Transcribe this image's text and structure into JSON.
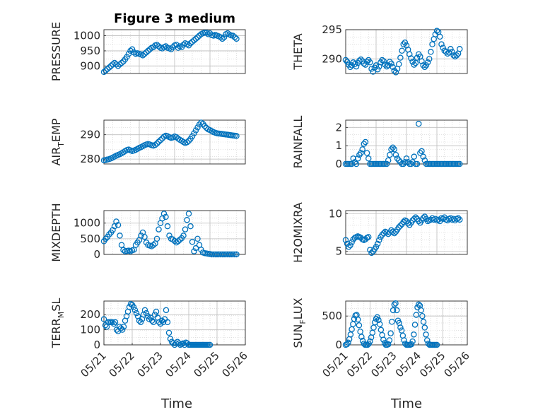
{
  "figure": {
    "title": "Figure 3 medium",
    "marker_color": "#0072bd"
  },
  "chart_data": [
    {
      "type": "scatter",
      "ylabel": "PRESSURE",
      "title": "Figure 3 medium",
      "xlabel": "",
      "xlim": [
        "05/21",
        "05/25"
      ],
      "ylim": [
        875,
        1020
      ],
      "yticks": [
        900,
        950,
        1000
      ],
      "xticklabels": [],
      "grid": true,
      "marker": "open-circle",
      "x": [
        0,
        0.05,
        0.1,
        0.15,
        0.2,
        0.25,
        0.3,
        0.35,
        0.4,
        0.45,
        0.5,
        0.55,
        0.6,
        0.65,
        0.7,
        0.75,
        0.8,
        0.85,
        0.9,
        0.95,
        1.0,
        1.05,
        1.1,
        1.15,
        1.2,
        1.25,
        1.3,
        1.35,
        1.4,
        1.45,
        1.5,
        1.55,
        1.6,
        1.65,
        1.7,
        1.75,
        1.8,
        1.85,
        1.9,
        1.95,
        2.0,
        2.05,
        2.1,
        2.15,
        2.2,
        2.25,
        2.3,
        2.35,
        2.4,
        2.45,
        2.5,
        2.55,
        2.6,
        2.65,
        2.7,
        2.75,
        2.8,
        2.85,
        2.9,
        2.95,
        3.0,
        3.05,
        3.1,
        3.15,
        3.2,
        3.25,
        3.3,
        3.35,
        3.4,
        3.45,
        3.5,
        3.55,
        3.6,
        3.65,
        3.7,
        3.75
      ],
      "y": [
        880,
        885,
        890,
        895,
        900,
        905,
        910,
        905,
        900,
        905,
        910,
        915,
        922,
        930,
        940,
        950,
        955,
        945,
        940,
        942,
        940,
        938,
        935,
        940,
        945,
        950,
        955,
        960,
        962,
        968,
        970,
        965,
        960,
        958,
        962,
        965,
        960,
        958,
        955,
        962,
        968,
        970,
        960,
        965,
        962,
        970,
        975,
        972,
        968,
        975,
        980,
        985,
        990,
        995,
        1000,
        1005,
        1008,
        1010,
        1010,
        1005,
        1008,
        1002,
        1000,
        1003,
        1000,
        998,
        995,
        990,
        995,
        1005,
        1008,
        1004,
        1001,
        1000,
        995,
        990
      ]
    },
    {
      "type": "scatter",
      "ylabel": "THETA",
      "xlabel": "",
      "xlim": [
        "05/21",
        "05/25"
      ],
      "ylim": [
        287.5,
        295
      ],
      "yticks": [
        290,
        295
      ],
      "xticklabels": [],
      "grid": true,
      "marker": "open-circle",
      "x": [
        0,
        0.05,
        0.1,
        0.15,
        0.2,
        0.25,
        0.3,
        0.35,
        0.4,
        0.45,
        0.5,
        0.55,
        0.6,
        0.65,
        0.7,
        0.75,
        0.8,
        0.85,
        0.9,
        0.95,
        1.0,
        1.05,
        1.1,
        1.15,
        1.2,
        1.25,
        1.3,
        1.35,
        1.4,
        1.45,
        1.5,
        1.55,
        1.6,
        1.65,
        1.7,
        1.75,
        1.8,
        1.85,
        1.9,
        1.95,
        2.0,
        2.05,
        2.1,
        2.15,
        2.2,
        2.25,
        2.3,
        2.35,
        2.4,
        2.45,
        2.5,
        2.55,
        2.6,
        2.65,
        2.7,
        2.75,
        2.8,
        2.85,
        2.9,
        2.95,
        3.0,
        3.05,
        3.1,
        3.15,
        3.2,
        3.25,
        3.3,
        3.35,
        3.4,
        3.45,
        3.5,
        3.55,
        3.6,
        3.65,
        3.7,
        3.75
      ],
      "y": [
        289.8,
        289.5,
        289.0,
        288.6,
        288.9,
        289.4,
        289.1,
        288.7,
        289.3,
        289.7,
        289.9,
        289.6,
        289.2,
        289.0,
        289.5,
        289.8,
        289.4,
        288.3,
        287.8,
        288.5,
        288.9,
        288.2,
        288.7,
        289.4,
        289.8,
        289.6,
        289.0,
        288.7,
        288.9,
        289.5,
        289.2,
        288.6,
        288.0,
        287.7,
        288.3,
        289.1,
        290.2,
        291.4,
        292.5,
        292.8,
        292.3,
        291.6,
        290.8,
        290.1,
        289.5,
        289.0,
        289.3,
        290.2,
        290.8,
        290.4,
        289.6,
        288.9,
        288.6,
        288.9,
        289.4,
        290.0,
        291.2,
        292.5,
        293.4,
        294.2,
        294.8,
        294.6,
        293.8,
        292.5,
        291.9,
        291.4,
        291.2,
        290.9,
        291.1,
        291.7,
        291.2,
        290.6,
        290.4,
        290.6,
        290.9,
        291.7
      ]
    },
    {
      "type": "scatter",
      "ylabel": "AIR_TEMP",
      "ylabel_main": "AIR",
      "ylabel_sub": "T",
      "ylabel_rest": "EMP",
      "xlabel": "",
      "xlim": [
        "05/21",
        "05/25"
      ],
      "ylim": [
        278,
        296
      ],
      "yticks": [
        280,
        290
      ],
      "xticklabels": [],
      "grid": true,
      "marker": "open-circle",
      "x": [
        0,
        0.05,
        0.1,
        0.15,
        0.2,
        0.25,
        0.3,
        0.35,
        0.4,
        0.45,
        0.5,
        0.55,
        0.6,
        0.65,
        0.7,
        0.75,
        0.8,
        0.85,
        0.9,
        0.95,
        1.0,
        1.05,
        1.1,
        1.15,
        1.2,
        1.25,
        1.3,
        1.35,
        1.4,
        1.45,
        1.5,
        1.55,
        1.6,
        1.65,
        1.7,
        1.75,
        1.8,
        1.85,
        1.9,
        1.95,
        2.0,
        2.05,
        2.1,
        2.15,
        2.2,
        2.25,
        2.3,
        2.35,
        2.4,
        2.45,
        2.5,
        2.55,
        2.6,
        2.65,
        2.7,
        2.75,
        2.8,
        2.85,
        2.9,
        2.95,
        3.0,
        3.05,
        3.1,
        3.15,
        3.2,
        3.25,
        3.3,
        3.35,
        3.4,
        3.45,
        3.5,
        3.55,
        3.6,
        3.65,
        3.7,
        3.75
      ],
      "y": [
        279.5,
        279.6,
        279.8,
        280.0,
        280.3,
        280.6,
        281.0,
        281.4,
        281.7,
        282.0,
        282.4,
        282.8,
        283.3,
        283.7,
        283.9,
        283.6,
        283.3,
        283.5,
        283.8,
        284.2,
        284.6,
        284.9,
        285.3,
        285.7,
        286.0,
        286.2,
        286.0,
        285.7,
        285.5,
        285.8,
        286.4,
        287.1,
        287.8,
        288.5,
        289.2,
        289.6,
        289.4,
        289.0,
        288.7,
        288.9,
        289.3,
        289.0,
        288.4,
        287.9,
        287.5,
        287.0,
        286.6,
        286.9,
        287.5,
        288.3,
        289.4,
        290.6,
        291.8,
        293.0,
        294.2,
        295.0,
        294.5,
        293.6,
        292.8,
        292.2,
        291.9,
        291.5,
        291.1,
        290.8,
        290.6,
        290.5,
        290.4,
        290.3,
        290.2,
        290.1,
        290.0,
        289.9,
        289.8,
        289.7,
        289.6,
        289.5
      ]
    },
    {
      "type": "scatter",
      "ylabel": "RAINFALL",
      "xlabel": "",
      "xlim": [
        "05/21",
        "05/25"
      ],
      "ylim": [
        0,
        2.4
      ],
      "yticks": [
        0,
        1,
        2
      ],
      "xticklabels": [],
      "grid": true,
      "marker": "open-circle",
      "x": [
        0,
        0.05,
        0.1,
        0.15,
        0.2,
        0.25,
        0.3,
        0.35,
        0.4,
        0.45,
        0.5,
        0.55,
        0.6,
        0.65,
        0.7,
        0.75,
        0.8,
        0.85,
        0.9,
        0.95,
        1.0,
        1.05,
        1.1,
        1.15,
        1.2,
        1.25,
        1.3,
        1.35,
        1.4,
        1.45,
        1.5,
        1.55,
        1.6,
        1.65,
        1.7,
        1.75,
        1.8,
        1.85,
        1.9,
        1.95,
        2.0,
        2.05,
        2.1,
        2.15,
        2.2,
        2.25,
        2.3,
        2.35,
        2.4,
        2.45,
        2.5,
        2.55,
        2.6,
        2.65,
        2.7,
        2.75,
        2.8,
        2.85,
        2.9,
        2.95,
        3.0,
        3.05,
        3.1,
        3.15,
        3.2,
        3.25,
        3.3,
        3.35,
        3.4,
        3.45,
        3.5,
        3.55,
        3.6,
        3.65,
        3.7,
        3.75
      ],
      "y": [
        0,
        0,
        0,
        0,
        0,
        0.3,
        0.1,
        0,
        0.3,
        0.5,
        0.6,
        0.8,
        1.1,
        1.2,
        0.6,
        0.3,
        0,
        0,
        0,
        0,
        0,
        0,
        0,
        0,
        0,
        0,
        0,
        0,
        0.2,
        0.5,
        0.8,
        0.9,
        0.8,
        0.5,
        0.3,
        0.2,
        0.1,
        0,
        0,
        0.1,
        0.3,
        0.1,
        0,
        0,
        0.1,
        0.4,
        0,
        0,
        2.2,
        0.6,
        0.7,
        0.4,
        0.2,
        0,
        0,
        0,
        0,
        0,
        0,
        0,
        0,
        0,
        0,
        0,
        0,
        0,
        0,
        0,
        0,
        0,
        0,
        0,
        0,
        0,
        0,
        0
      ]
    },
    {
      "type": "scatter",
      "ylabel": "MIXDEPTH",
      "xlabel": "",
      "xlim": [
        "05/21",
        "05/25"
      ],
      "ylim": [
        0,
        1400
      ],
      "yticks": [
        0,
        500,
        1000
      ],
      "xticklabels": [],
      "grid": true,
      "marker": "open-circle",
      "x": [
        0,
        0.05,
        0.1,
        0.15,
        0.2,
        0.25,
        0.3,
        0.35,
        0.4,
        0.45,
        0.5,
        0.55,
        0.6,
        0.65,
        0.7,
        0.75,
        0.8,
        0.85,
        0.9,
        0.95,
        1.0,
        1.05,
        1.1,
        1.15,
        1.2,
        1.25,
        1.3,
        1.35,
        1.4,
        1.45,
        1.5,
        1.55,
        1.6,
        1.65,
        1.7,
        1.75,
        1.8,
        1.85,
        1.9,
        1.95,
        2.0,
        2.05,
        2.1,
        2.15,
        2.2,
        2.25,
        2.3,
        2.35,
        2.4,
        2.45,
        2.5,
        2.55,
        2.6,
        2.65,
        2.7,
        2.75,
        2.8,
        2.85,
        2.9,
        2.95,
        3.0,
        3.05,
        3.1,
        3.15,
        3.2,
        3.25,
        3.3,
        3.35,
        3.4,
        3.45,
        3.5,
        3.55,
        3.6,
        3.65,
        3.7,
        3.75
      ],
      "y": [
        420,
        500,
        560,
        640,
        700,
        780,
        900,
        1050,
        940,
        600,
        300,
        140,
        100,
        110,
        120,
        100,
        130,
        150,
        300,
        380,
        460,
        600,
        700,
        560,
        380,
        300,
        280,
        260,
        300,
        350,
        500,
        800,
        1000,
        1150,
        1300,
        1200,
        900,
        600,
        500,
        480,
        430,
        380,
        420,
        470,
        520,
        600,
        800,
        1100,
        1300,
        900,
        400,
        100,
        200,
        500,
        300,
        150,
        60,
        40,
        30,
        20,
        10,
        0,
        0,
        0,
        0,
        0,
        0,
        0,
        0,
        0,
        0,
        0,
        0,
        0,
        0,
        0
      ]
    },
    {
      "type": "scatter",
      "ylabel": "H2OMIXRA",
      "xlabel": "",
      "xlim": [
        "05/21",
        "05/25"
      ],
      "ylim": [
        4.6,
        10.4
      ],
      "yticks": [
        5,
        10
      ],
      "xticklabels": [],
      "grid": true,
      "marker": "open-circle",
      "x": [
        0,
        0.05,
        0.1,
        0.15,
        0.2,
        0.25,
        0.3,
        0.35,
        0.4,
        0.45,
        0.5,
        0.55,
        0.6,
        0.65,
        0.7,
        0.75,
        0.8,
        0.85,
        0.9,
        0.95,
        1.0,
        1.05,
        1.1,
        1.15,
        1.2,
        1.25,
        1.3,
        1.35,
        1.4,
        1.45,
        1.5,
        1.55,
        1.6,
        1.65,
        1.7,
        1.75,
        1.8,
        1.85,
        1.9,
        1.95,
        2.0,
        2.05,
        2.1,
        2.15,
        2.2,
        2.25,
        2.3,
        2.35,
        2.4,
        2.45,
        2.5,
        2.55,
        2.6,
        2.65,
        2.7,
        2.75,
        2.8,
        2.85,
        2.9,
        2.95,
        3.0,
        3.05,
        3.1,
        3.15,
        3.2,
        3.25,
        3.3,
        3.35,
        3.4,
        3.45,
        3.5,
        3.55,
        3.6,
        3.65,
        3.7,
        3.75
      ],
      "y": [
        6.5,
        6.0,
        5.6,
        5.8,
        6.2,
        6.6,
        6.8,
        6.9,
        7.0,
        6.9,
        6.8,
        6.6,
        6.5,
        6.6,
        6.8,
        6.9,
        5.2,
        4.8,
        5.0,
        5.3,
        5.6,
        6.0,
        6.5,
        6.9,
        7.2,
        7.4,
        7.6,
        7.5,
        7.3,
        7.5,
        7.8,
        7.6,
        7.4,
        7.6,
        7.9,
        8.2,
        8.4,
        8.6,
        8.9,
        9.1,
        9.0,
        8.7,
        8.5,
        8.8,
        9.1,
        9.3,
        9.5,
        9.3,
        9.0,
        8.8,
        9.1,
        9.4,
        9.6,
        9.3,
        9.0,
        9.1,
        9.2,
        9.4,
        9.2,
        9.3,
        9.1,
        9.2,
        9.0,
        9.4,
        9.3,
        9.5,
        9.2,
        9.1,
        9.3,
        9.4,
        9.2,
        9.3,
        9.1,
        9.3,
        9.4,
        9.2
      ]
    },
    {
      "type": "scatter",
      "ylabel": "TERR_MSL",
      "ylabel_main": "TERR",
      "ylabel_sub": "M",
      "ylabel_rest": "SL",
      "xlabel": "Time",
      "xlim": [
        "05/21",
        "05/26"
      ],
      "ylim": [
        0,
        290
      ],
      "yticks": [
        0,
        100,
        200
      ],
      "xticklabels": [
        "05/21",
        "05/22",
        "05/23",
        "05/24",
        "05/25",
        "05/26"
      ],
      "grid": true,
      "marker": "open-circle",
      "x": [
        0,
        0.05,
        0.1,
        0.15,
        0.2,
        0.25,
        0.3,
        0.35,
        0.4,
        0.45,
        0.5,
        0.55,
        0.6,
        0.65,
        0.7,
        0.75,
        0.8,
        0.85,
        0.9,
        0.95,
        1.0,
        1.05,
        1.1,
        1.15,
        1.2,
        1.25,
        1.3,
        1.35,
        1.4,
        1.45,
        1.5,
        1.55,
        1.6,
        1.65,
        1.7,
        1.75,
        1.8,
        1.85,
        1.9,
        1.95,
        2.0,
        2.05,
        2.1,
        2.15,
        2.2,
        2.25,
        2.3,
        2.35,
        2.4,
        2.45,
        2.5,
        2.55,
        2.6,
        2.65,
        2.7,
        2.75,
        2.8,
        2.85,
        2.9,
        2.95,
        3.0,
        3.05,
        3.1,
        3.15,
        3.2,
        3.25,
        3.3,
        3.35,
        3.4,
        3.45,
        3.5,
        3.55,
        3.6,
        3.65,
        3.7,
        3.75
      ],
      "y": [
        170,
        130,
        120,
        150,
        150,
        150,
        150,
        140,
        150,
        100,
        90,
        120,
        110,
        100,
        120,
        160,
        190,
        220,
        250,
        270,
        265,
        250,
        230,
        210,
        190,
        160,
        150,
        170,
        200,
        230,
        210,
        190,
        170,
        180,
        160,
        150,
        200,
        220,
        180,
        150,
        140,
        160,
        150,
        170,
        230,
        150,
        80,
        40,
        20,
        10,
        0,
        10,
        20,
        10,
        0,
        5,
        10,
        0,
        15,
        10,
        0,
        0,
        0,
        0,
        0,
        0,
        0,
        0,
        0,
        0,
        0,
        0,
        0,
        0,
        0,
        0
      ]
    },
    {
      "type": "scatter",
      "ylabel": "SUN_FLUX",
      "ylabel_main": "SUN",
      "ylabel_sub": "F",
      "ylabel_rest": "LUX",
      "xlabel": "Time",
      "xlim": [
        "05/21",
        "05/26"
      ],
      "ylim": [
        0,
        760
      ],
      "yticks": [
        0,
        500
      ],
      "xticklabels": [
        "05/21",
        "05/22",
        "05/23",
        "05/24",
        "05/25",
        "05/26"
      ],
      "grid": true,
      "marker": "open-circle",
      "x": [
        0,
        0.05,
        0.1,
        0.15,
        0.2,
        0.25,
        0.3,
        0.35,
        0.4,
        0.45,
        0.5,
        0.55,
        0.6,
        0.65,
        0.7,
        0.75,
        0.8,
        0.85,
        0.9,
        0.95,
        1.0,
        1.05,
        1.1,
        1.15,
        1.2,
        1.25,
        1.3,
        1.35,
        1.4,
        1.45,
        1.5,
        1.55,
        1.6,
        1.65,
        1.7,
        1.75,
        1.8,
        1.85,
        1.9,
        1.95,
        2.0,
        2.05,
        2.1,
        2.15,
        2.2,
        2.25,
        2.3,
        2.35,
        2.4,
        2.45,
        2.5,
        2.55,
        2.6,
        2.65,
        2.7,
        2.75,
        2.8,
        2.85,
        2.9,
        2.95,
        3.0,
        3.05,
        3.1,
        3.15,
        3.2,
        3.25,
        3.3,
        3.35,
        3.4,
        3.45,
        3.5,
        3.55,
        3.6,
        3.65,
        3.7,
        3.75
      ],
      "y": [
        0,
        10,
        40,
        100,
        180,
        270,
        360,
        450,
        510,
        520,
        440,
        340,
        230,
        140,
        70,
        20,
        0,
        0,
        0,
        20,
        60,
        130,
        210,
        300,
        390,
        450,
        480,
        430,
        360,
        260,
        170,
        90,
        30,
        0,
        0,
        10,
        80,
        200,
        400,
        600,
        700,
        720,
        600,
        420,
        380,
        300,
        250,
        160,
        80,
        20,
        0,
        0,
        0,
        0,
        10,
        60,
        180,
        350,
        520,
        650,
        700,
        680,
        600,
        500,
        400,
        300,
        180,
        80,
        20,
        0,
        0,
        0,
        0,
        0,
        0,
        0
      ]
    }
  ]
}
